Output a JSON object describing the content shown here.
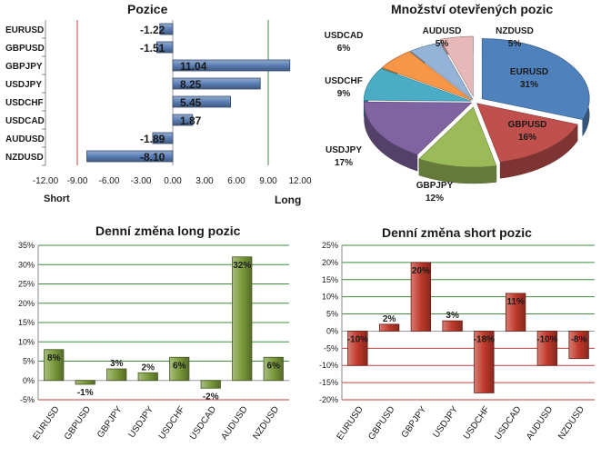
{
  "colors": {
    "long_bar": "#7a9a3a",
    "short_bar": "#c0392b",
    "position_bar": "#5b7fb5",
    "gridline_green": "#3c8c3c",
    "gridline_red": "#c04040"
  },
  "chart_data": [
    {
      "id": "positions",
      "type": "bar",
      "orientation": "horizontal",
      "title": "Pozice",
      "categories": [
        "EURUSD",
        "GBPUSD",
        "GBPJPY",
        "USDJPY",
        "USDCHF",
        "USDCAD",
        "AUDUSD",
        "NZDUSD"
      ],
      "values": [
        -1.22,
        -1.51,
        11.04,
        8.25,
        5.45,
        1.87,
        -1.89,
        -8.1
      ],
      "value_labels": [
        "-1.22",
        "-1.51",
        "11.04",
        "8.25",
        "5.45",
        "1.87",
        "-1.89",
        "-8.10"
      ],
      "xlim": [
        -12,
        12
      ],
      "ticks": [
        -12,
        -9,
        -6,
        -3,
        0,
        3,
        6,
        9,
        12
      ],
      "tick_labels": [
        "-12.00",
        "-9.00",
        "-6.00",
        "-3.00",
        "0.00",
        "3.00",
        "6.00",
        "9.00",
        "12.00"
      ],
      "short_label": "Short",
      "long_label": "Long",
      "ref_lines_short": [
        -9
      ],
      "ref_lines_long": [
        9
      ]
    },
    {
      "id": "open-positions",
      "type": "pie",
      "title": "Množství otevřených pozic",
      "slices": [
        {
          "name": "EURUSD",
          "value": 31,
          "label": "31%",
          "color": "#4f81bd"
        },
        {
          "name": "GBPUSD",
          "value": 16,
          "label": "16%",
          "color": "#c0504d"
        },
        {
          "name": "GBPJPY",
          "value": 12,
          "label": "12%",
          "color": "#9bbb59"
        },
        {
          "name": "USDJPY",
          "value": 17,
          "label": "17%",
          "color": "#8064a2"
        },
        {
          "name": "USDCHF",
          "value": 9,
          "label": "9%",
          "color": "#4bacc6"
        },
        {
          "name": "USDCAD",
          "value": 6,
          "label": "6%",
          "color": "#f79646"
        },
        {
          "name": "AUDUSD",
          "value": 5,
          "label": "5%",
          "color": "#95b3d7"
        },
        {
          "name": "NZDUSD",
          "value": 5,
          "label": "5%",
          "color": "#e6b9b8"
        }
      ]
    },
    {
      "id": "daily-long",
      "type": "bar",
      "title": "Denní změna long pozic",
      "categories": [
        "EURUSD",
        "GBPUSD",
        "GBPJPY",
        "USDJPY",
        "USDCHF",
        "USDCAD",
        "AUDUSD",
        "NZDUSD"
      ],
      "values": [
        8,
        -1,
        3,
        2,
        6,
        -2,
        32,
        6
      ],
      "value_labels": [
        "8%",
        "-1%",
        "3%",
        "2%",
        "6%",
        "-2%",
        "32%",
        "6%"
      ],
      "ylim": [
        -5,
        35
      ],
      "ticks": [
        -5,
        0,
        5,
        10,
        15,
        20,
        25,
        30,
        35
      ],
      "tick_labels": [
        "-5%",
        "0%",
        "5%",
        "10%",
        "15%",
        "20%",
        "25%",
        "30%",
        "35%"
      ]
    },
    {
      "id": "daily-short",
      "type": "bar",
      "title": "Denní změna short  pozic",
      "categories": [
        "EURUSD",
        "GBPUSD",
        "GBPJPY",
        "USDJPY",
        "USDCHF",
        "USDCAD",
        "AUDUSD",
        "NZDUSD"
      ],
      "values": [
        -10,
        2,
        20,
        3,
        -18,
        11,
        -10,
        -8
      ],
      "value_labels": [
        "-10%",
        "2%",
        "20%",
        "3%",
        "-18%",
        "11%",
        "-10%",
        "-8%"
      ],
      "ylim": [
        -20,
        25
      ],
      "ticks": [
        -20,
        -15,
        -10,
        -5,
        0,
        5,
        10,
        15,
        20,
        25
      ],
      "tick_labels": [
        "-20%",
        "-15%",
        "-10%",
        "-5%",
        "0%",
        "5%",
        "10%",
        "15%",
        "20%",
        "25%"
      ]
    }
  ]
}
